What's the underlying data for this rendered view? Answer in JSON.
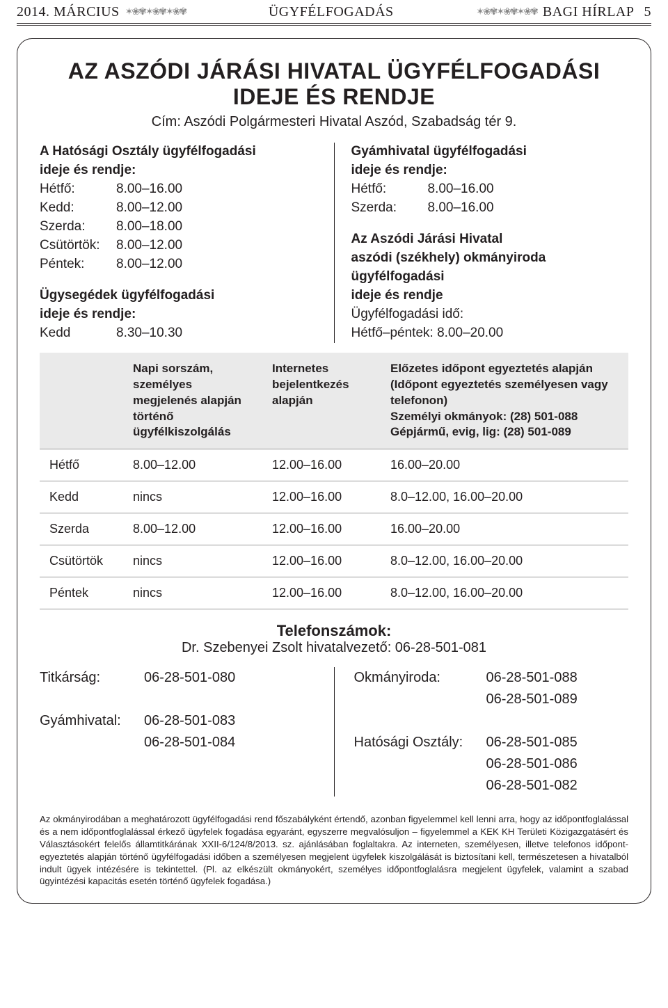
{
  "header": {
    "left_date": "2014. MÁRCIUS",
    "center": "ÜGYFÉLFOGADÁS",
    "right_name": "BAGI HÍRLAP",
    "page_num": "5",
    "ornament": "✶❀✾✶❀✾✶❀✾"
  },
  "title_line1": "AZ ASZÓDI JÁRÁSI HIVATAL ÜGYFÉLFOGADÁSI",
  "title_line2": "IDEJE ÉS RENDJE",
  "address": "Cím: Aszódi Polgármesteri Hivatal Aszód, Szabadság tér 9.",
  "left": {
    "sec1_head1": "A Hatósági Osztály ügyfélfogadási",
    "sec1_head2": "ideje és rendje:",
    "sec1_rows": [
      {
        "day": "Hétfő:",
        "time": "8.00–16.00"
      },
      {
        "day": "Kedd:",
        "time": "8.00–12.00"
      },
      {
        "day": "Szerda:",
        "time": "8.00–18.00"
      },
      {
        "day": "Csütörtök:",
        "time": "8.00–12.00"
      },
      {
        "day": "Péntek:",
        "time": "8.00–12.00"
      }
    ],
    "sec2_head1": "Ügysegédek ügyfélfogadási",
    "sec2_head2": "ideje és rendje:",
    "sec2_rows": [
      {
        "day": "Kedd",
        "time": "8.30–10.30"
      }
    ]
  },
  "right": {
    "sec1_head1": "Gyámhivatal ügyfélfogadási",
    "sec1_head2": "ideje és rendje:",
    "sec1_rows": [
      {
        "day": "Hétfő:",
        "time": "8.00–16.00"
      },
      {
        "day": "Szerda:",
        "time": "8.00–16.00"
      }
    ],
    "sec2_head1": "Az Aszódi Járási Hivatal",
    "sec2_head2": "aszódi (székhely) okmányiroda",
    "sec2_head3": "ügyfélfogadási",
    "sec2_head4": "ideje és rendje",
    "sec2_line5": "Ügyfélfogadási idő:",
    "sec2_line6": "Hétfő–péntek: 8.00–20.00"
  },
  "table": {
    "head_col1": "",
    "head_col2": "Napi sorszám, személyes megjelenés alapján történő ügyfélkiszolgálás",
    "head_col3": "Internetes bejelentkezés alapján",
    "head_col4_l1": "Előzetes időpont egyeztetés alapján",
    "head_col4_l2": "(Időpont egyeztetés személyesen vagy telefonon)",
    "head_col4_l3": "Személyi okmányok: (28) 501-088",
    "head_col4_l4": "Gépjármű, evig, lig:  (28) 501-089",
    "rows": [
      {
        "day": "Hétfő",
        "c2": "8.00–12.00",
        "c3": "12.00–16.00",
        "c4": "16.00–20.00"
      },
      {
        "day": "Kedd",
        "c2": "nincs",
        "c3": "12.00–16.00",
        "c4": "8.0–12.00, 16.00–20.00"
      },
      {
        "day": "Szerda",
        "c2": "8.00–12.00",
        "c3": "12.00–16.00",
        "c4": "16.00–20.00"
      },
      {
        "day": "Csütörtök",
        "c2": "nincs",
        "c3": "12.00–16.00",
        "c4": "8.0–12.00, 16.00–20.00"
      },
      {
        "day": "Péntek",
        "c2": "nincs",
        "c3": "12.00–16.00",
        "c4": "8.0–12.00, 16.00–20.00"
      }
    ]
  },
  "phones": {
    "title": "Telefonszámok:",
    "director": "Dr. Szebenyei Zsolt hivatalvezető: 06-28-501-081",
    "left": [
      {
        "label": "Titkárság:",
        "num": "06-28-501-080"
      },
      {
        "label": "",
        "num": ""
      },
      {
        "label": "Gyámhivatal:",
        "num": "06-28-501-083"
      },
      {
        "label": "",
        "num": "06-28-501-084"
      }
    ],
    "right": [
      {
        "label": "Okmányiroda:",
        "num": "06-28-501-088"
      },
      {
        "label": "",
        "num": "06-28-501-089"
      },
      {
        "label": "",
        "num": ""
      },
      {
        "label": "Hatósági Osztály:",
        "num": "06-28-501-085"
      },
      {
        "label": "",
        "num": "06-28-501-086"
      },
      {
        "label": "",
        "num": "06-28-501-082"
      }
    ]
  },
  "footnote": "Az okmányirodában a meghatározott ügyfélfogadási rend főszabályként értendő, azonban figyelemmel kell lenni arra, hogy az időpontfoglalással és a nem időpontfoglalással érkező ügyfelek fogadása egyaránt, egyszerre megvalósuljon – figyelemmel a KEK KH Területi Közigazgatásért és Választásokért felelős államtitkárának XXII-6/124/8/2013. sz. ajánlásában foglaltakra. Az interneten, személyesen, illetve telefonos időpont-egyeztetés alapján történő ügyfélfogadási időben a személyesen megjelent ügyfelek kiszolgálását is biztosítani kell, természetesen a hivatalból indult ügyek intézésére is tekintettel. (Pl. az elkészült okmányokért, személyes időpontfoglalásra megjelent ügyfelek, valamint a szabad ügyintézési kapacitás esetén történő ügyfelek fogadása.)"
}
